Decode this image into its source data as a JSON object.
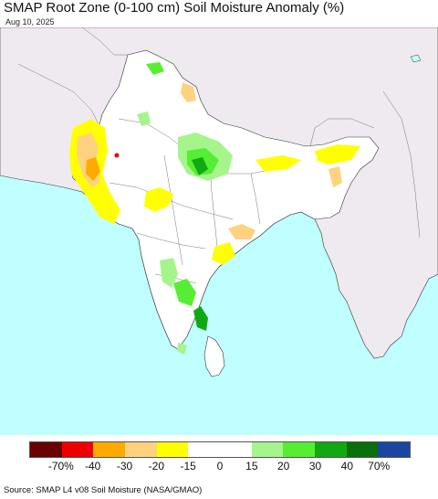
{
  "header": {
    "title": "SMAP Root Zone (0-100 cm) Soil Moisture Anomaly (%)",
    "date": "Aug 10, 2025"
  },
  "map": {
    "region": "South Asia",
    "colors": {
      "ocean": "#bfffff",
      "land_outside": "#efeaf0",
      "land_inside": "#ffffff",
      "border": "#333333"
    }
  },
  "legend": {
    "colors": [
      "#6b0000",
      "#ee0000",
      "#ffaa00",
      "#ffd27f",
      "#ffff00",
      "#ffffff",
      "#ffffff",
      "#a5f58c",
      "#55ee33",
      "#11a811",
      "#0a6e0a",
      "#1a46a0"
    ],
    "labels": [
      "-70%",
      "-40",
      "-30",
      "-20",
      "-15",
      "0",
      "15",
      "20",
      "30",
      "40",
      "70%"
    ]
  },
  "footer": {
    "source": "Source: SMAP L4 v08 Soil Moisture (NASA/GMAO)"
  }
}
